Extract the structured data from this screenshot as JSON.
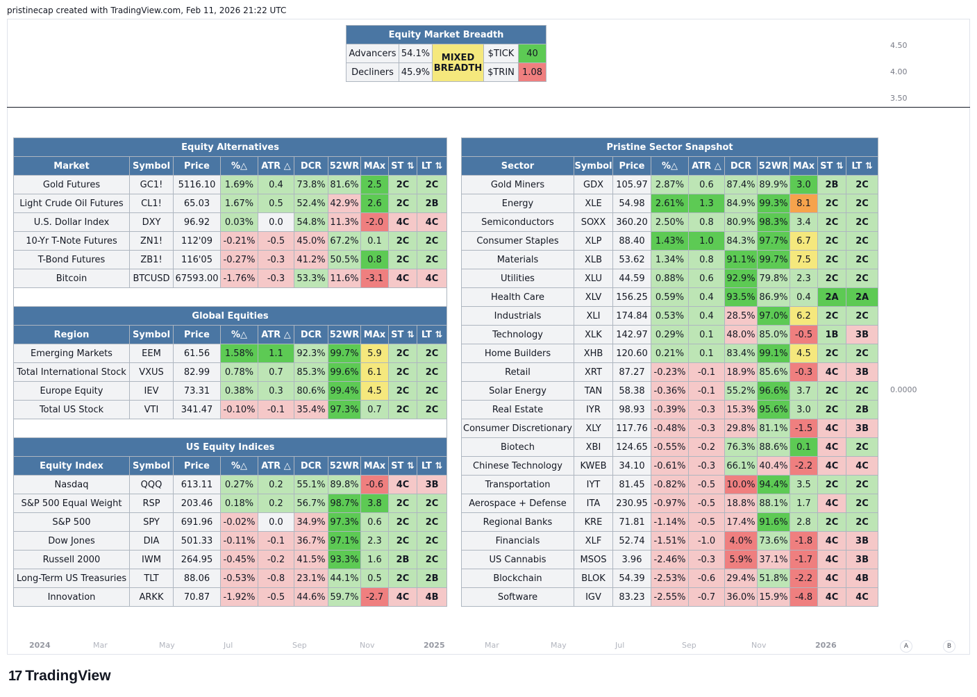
{
  "header": {
    "text": "pristinecap created with TradingView.com, Feb 11, 2026 21:22 UTC"
  },
  "price_axis_top": [
    "4.50",
    "4.00",
    "3.50"
  ],
  "price_axis_main": "0.0000",
  "time_axis": [
    "2024",
    "Mar",
    "May",
    "Jul",
    "Sep",
    "Nov",
    "2025",
    "Mar",
    "May",
    "Jul",
    "Sep",
    "Nov",
    "2026"
  ],
  "scale_buttons": [
    "A",
    "B"
  ],
  "logo": {
    "mark": "17",
    "text": "TradingView"
  },
  "breadth": {
    "title": "Equity Market Breadth",
    "advancers_label": "Advancers",
    "advancers_value": "54.1%",
    "decliners_label": "Decliners",
    "decliners_value": "45.9%",
    "status_line1": "MIXED",
    "status_line2": "BREADTH",
    "tick_label": "$TICK",
    "tick_value": "40",
    "trin_label": "$TRIN",
    "trin_value": "1.08"
  },
  "colors": {
    "header_blue": "#4a76a3",
    "light_red": "#f5c8c8",
    "light_green": "#bde5b5",
    "strong_green": "#5dca54",
    "strong_red": "#ef7f7f",
    "yellow": "#f5e87d",
    "orange": "#f6a34c"
  },
  "left_tables": {
    "columns_common": [
      "Symbol",
      "Price",
      "%△",
      "ATR △",
      "DCR",
      "52WR",
      "MAx",
      "ST ⇅",
      "LT ⇅"
    ],
    "sections": [
      {
        "title": "Equity Alternatives",
        "first_col": "Market",
        "rows": [
          [
            "Gold Futures",
            "GC1!",
            "5116.10",
            "1.69%",
            "0.4",
            "73.8%",
            "81.6%",
            "2.5",
            "2C",
            "2C"
          ],
          [
            "Light Crude Oil Futures",
            "CL1!",
            "65.03",
            "1.67%",
            "0.5",
            "52.4%",
            "42.9%",
            "2.6",
            "2C",
            "2B"
          ],
          [
            "U.S. Dollar Index",
            "DXY",
            "96.92",
            "0.03%",
            "0.0",
            "54.8%",
            "11.3%",
            "-2.0",
            "4C",
            "4C"
          ],
          [
            "10-Yr T-Note Futures",
            "ZN1!",
            "112'09",
            "-0.21%",
            "-0.5",
            "45.0%",
            "67.2%",
            "0.1",
            "2C",
            "2C"
          ],
          [
            "T-Bond Futures",
            "ZB1!",
            "116'05",
            "-0.27%",
            "-0.3",
            "41.2%",
            "50.5%",
            "0.8",
            "2C",
            "2C"
          ],
          [
            "Bitcoin",
            "BTCUSD",
            "67593.00",
            "-1.76%",
            "-0.3",
            "53.3%",
            "11.6%",
            "-3.1",
            "4C",
            "4C"
          ]
        ],
        "colors": [
          [
            "g",
            "g",
            "g",
            "g",
            "G",
            "g",
            "g"
          ],
          [
            "g",
            "g",
            "g",
            "r",
            "G",
            "g",
            "g"
          ],
          [
            "g",
            "n",
            "g",
            "r",
            "R",
            "r",
            "r"
          ],
          [
            "r",
            "r",
            "r",
            "g",
            "g",
            "g",
            "g"
          ],
          [
            "r",
            "r",
            "r",
            "g",
            "G",
            "g",
            "g"
          ],
          [
            "r",
            "r",
            "g",
            "r",
            "R",
            "r",
            "r"
          ]
        ]
      },
      {
        "title": "Global Equities",
        "first_col": "Region",
        "rows": [
          [
            "Emerging Markets",
            "EEM",
            "61.56",
            "1.58%",
            "1.1",
            "92.3%",
            "99.7%",
            "5.9",
            "2C",
            "2C"
          ],
          [
            "Total International Stock",
            "VXUS",
            "82.99",
            "0.78%",
            "0.7",
            "85.3%",
            "99.6%",
            "6.1",
            "2C",
            "2C"
          ],
          [
            "Europe Equity",
            "IEV",
            "73.31",
            "0.38%",
            "0.3",
            "80.6%",
            "99.4%",
            "4.5",
            "2C",
            "2C"
          ],
          [
            "Total US Stock",
            "VTI",
            "341.47",
            "-0.10%",
            "-0.1",
            "35.4%",
            "97.3%",
            "0.7",
            "2C",
            "2C"
          ]
        ],
        "colors": [
          [
            "G",
            "G",
            "g",
            "G",
            "y",
            "g",
            "g"
          ],
          [
            "g",
            "g",
            "g",
            "G",
            "y",
            "g",
            "g"
          ],
          [
            "g",
            "g",
            "g",
            "G",
            "y",
            "g",
            "g"
          ],
          [
            "r",
            "r",
            "r",
            "G",
            "g",
            "g",
            "g"
          ]
        ]
      },
      {
        "title": "US Equity Indices",
        "first_col": "Equity Index",
        "rows": [
          [
            "Nasdaq",
            "QQQ",
            "613.11",
            "0.27%",
            "0.2",
            "55.1%",
            "89.8%",
            "-0.6",
            "4C",
            "3B"
          ],
          [
            "S&P 500 Equal Weight",
            "RSP",
            "203.46",
            "0.18%",
            "0.2",
            "56.7%",
            "98.7%",
            "3.8",
            "2C",
            "2C"
          ],
          [
            "S&P 500",
            "SPY",
            "691.96",
            "-0.02%",
            "0.0",
            "34.9%",
            "97.3%",
            "0.6",
            "2C",
            "2C"
          ],
          [
            "Dow Jones",
            "DIA",
            "501.33",
            "-0.11%",
            "-0.1",
            "36.7%",
            "97.1%",
            "2.3",
            "2C",
            "2C"
          ],
          [
            "Russell 2000",
            "IWM",
            "264.95",
            "-0.45%",
            "-0.2",
            "41.5%",
            "93.3%",
            "1.6",
            "2B",
            "2C"
          ],
          [
            "Long-Term US Treasuries",
            "TLT",
            "88.06",
            "-0.53%",
            "-0.8",
            "23.1%",
            "44.1%",
            "0.5",
            "2C",
            "2B"
          ],
          [
            "Innovation",
            "ARKK",
            "70.87",
            "-1.92%",
            "-0.5",
            "44.6%",
            "59.7%",
            "-2.7",
            "4C",
            "4B"
          ]
        ],
        "colors": [
          [
            "g",
            "g",
            "g",
            "g",
            "R",
            "r",
            "r"
          ],
          [
            "g",
            "g",
            "g",
            "G",
            "G",
            "g",
            "g"
          ],
          [
            "r",
            "n",
            "r",
            "G",
            "g",
            "g",
            "g"
          ],
          [
            "r",
            "r",
            "r",
            "G",
            "g",
            "g",
            "g"
          ],
          [
            "r",
            "r",
            "r",
            "G",
            "g",
            "g",
            "g"
          ],
          [
            "r",
            "r",
            "r",
            "g",
            "g",
            "g",
            "g"
          ],
          [
            "r",
            "r",
            "r",
            "g",
            "R",
            "r",
            "r"
          ]
        ]
      }
    ]
  },
  "sector_table": {
    "title": "Pristine Sector Snapshot",
    "columns": [
      "Sector",
      "Symbol",
      "Price",
      "%△",
      "ATR △",
      "DCR",
      "52WR",
      "MAx",
      "ST ⇅",
      "LT ⇅"
    ],
    "rows": [
      [
        "Gold Miners",
        "GDX",
        "105.97",
        "2.87%",
        "0.6",
        "87.4%",
        "89.9%",
        "3.0",
        "2B",
        "2C"
      ],
      [
        "Energy",
        "XLE",
        "54.98",
        "2.61%",
        "1.3",
        "84.9%",
        "99.3%",
        "8.1",
        "2C",
        "2C"
      ],
      [
        "Semiconductors",
        "SOXX",
        "360.20",
        "2.50%",
        "0.8",
        "80.9%",
        "98.3%",
        "3.4",
        "2C",
        "2C"
      ],
      [
        "Consumer Staples",
        "XLP",
        "88.40",
        "1.43%",
        "1.0",
        "84.3%",
        "97.7%",
        "6.7",
        "2C",
        "2C"
      ],
      [
        "Materials",
        "XLB",
        "53.62",
        "1.34%",
        "0.8",
        "91.1%",
        "99.7%",
        "7.5",
        "2C",
        "2C"
      ],
      [
        "Utilities",
        "XLU",
        "44.59",
        "0.88%",
        "0.6",
        "92.9%",
        "79.8%",
        "2.3",
        "2C",
        "2C"
      ],
      [
        "Health Care",
        "XLV",
        "156.25",
        "0.59%",
        "0.4",
        "93.5%",
        "86.9%",
        "0.4",
        "2A",
        "2A"
      ],
      [
        "Industrials",
        "XLI",
        "174.84",
        "0.53%",
        "0.4",
        "28.5%",
        "97.0%",
        "6.2",
        "2C",
        "2C"
      ],
      [
        "Technology",
        "XLK",
        "142.97",
        "0.29%",
        "0.1",
        "48.0%",
        "85.0%",
        "-0.5",
        "1B",
        "3B"
      ],
      [
        "Home Builders",
        "XHB",
        "120.60",
        "0.21%",
        "0.1",
        "83.4%",
        "99.1%",
        "4.5",
        "2C",
        "2C"
      ],
      [
        "Retail",
        "XRT",
        "87.27",
        "-0.23%",
        "-0.1",
        "18.9%",
        "85.6%",
        "-0.3",
        "4C",
        "3B"
      ],
      [
        "Solar Energy",
        "TAN",
        "58.38",
        "-0.36%",
        "-0.1",
        "55.2%",
        "96.6%",
        "3.7",
        "2C",
        "2C"
      ],
      [
        "Real Estate",
        "IYR",
        "98.93",
        "-0.39%",
        "-0.3",
        "15.3%",
        "95.6%",
        "3.0",
        "2C",
        "2B"
      ],
      [
        "Consumer Discretionary",
        "XLY",
        "117.76",
        "-0.48%",
        "-0.3",
        "29.8%",
        "81.1%",
        "-1.5",
        "4C",
        "3B"
      ],
      [
        "Biotech",
        "XBI",
        "124.65",
        "-0.55%",
        "-0.2",
        "76.3%",
        "88.6%",
        "0.1",
        "4C",
        "2C"
      ],
      [
        "Chinese Technology",
        "KWEB",
        "34.10",
        "-0.61%",
        "-0.3",
        "66.1%",
        "40.4%",
        "-2.2",
        "4C",
        "4C"
      ],
      [
        "Transportation",
        "IYT",
        "81.45",
        "-0.82%",
        "-0.5",
        "10.0%",
        "94.4%",
        "3.5",
        "2C",
        "2C"
      ],
      [
        "Aerospace + Defense",
        "ITA",
        "230.95",
        "-0.97%",
        "-0.5",
        "18.8%",
        "88.1%",
        "1.7",
        "4C",
        "2C"
      ],
      [
        "Regional Banks",
        "KRE",
        "71.81",
        "-1.14%",
        "-0.5",
        "17.4%",
        "91.6%",
        "2.8",
        "2C",
        "2C"
      ],
      [
        "Financials",
        "XLF",
        "52.74",
        "-1.51%",
        "-1.0",
        "4.0%",
        "73.6%",
        "-1.8",
        "4C",
        "3B"
      ],
      [
        "US Cannabis",
        "MSOS",
        "3.96",
        "-2.46%",
        "-0.3",
        "5.9%",
        "37.1%",
        "-1.7",
        "4C",
        "3B"
      ],
      [
        "Blockchain",
        "BLOK",
        "54.39",
        "-2.53%",
        "-0.6",
        "29.4%",
        "51.8%",
        "-2.2",
        "4C",
        "4B"
      ],
      [
        "Software",
        "IGV",
        "83.23",
        "-2.55%",
        "-0.7",
        "36.0%",
        "15.9%",
        "-4.8",
        "4C",
        "4C"
      ]
    ],
    "colors": [
      [
        "g",
        "g",
        "g",
        "g",
        "G",
        "g",
        "g"
      ],
      [
        "G",
        "G",
        "g",
        "G",
        "o",
        "g",
        "g"
      ],
      [
        "g",
        "g",
        "g",
        "G",
        "g",
        "g",
        "g"
      ],
      [
        "G",
        "G",
        "g",
        "G",
        "y",
        "g",
        "g"
      ],
      [
        "g",
        "g",
        "G",
        "G",
        "y",
        "g",
        "g"
      ],
      [
        "g",
        "g",
        "G",
        "g",
        "g",
        "g",
        "g"
      ],
      [
        "g",
        "g",
        "G",
        "g",
        "g",
        "G",
        "G"
      ],
      [
        "g",
        "g",
        "r",
        "G",
        "y",
        "g",
        "g"
      ],
      [
        "g",
        "g",
        "r",
        "g",
        "R",
        "g",
        "r"
      ],
      [
        "g",
        "g",
        "g",
        "G",
        "y",
        "g",
        "g"
      ],
      [
        "r",
        "r",
        "r",
        "g",
        "R",
        "r",
        "r"
      ],
      [
        "r",
        "r",
        "g",
        "G",
        "g",
        "g",
        "g"
      ],
      [
        "r",
        "r",
        "r",
        "G",
        "g",
        "g",
        "g"
      ],
      [
        "r",
        "r",
        "r",
        "g",
        "R",
        "r",
        "r"
      ],
      [
        "r",
        "r",
        "g",
        "g",
        "G",
        "r",
        "g"
      ],
      [
        "r",
        "r",
        "g",
        "r",
        "R",
        "r",
        "r"
      ],
      [
        "r",
        "r",
        "R",
        "G",
        "g",
        "g",
        "g"
      ],
      [
        "r",
        "r",
        "r",
        "g",
        "g",
        "r",
        "g"
      ],
      [
        "r",
        "r",
        "r",
        "G",
        "g",
        "g",
        "g"
      ],
      [
        "r",
        "r",
        "R",
        "g",
        "R",
        "r",
        "r"
      ],
      [
        "r",
        "r",
        "R",
        "r",
        "R",
        "r",
        "r"
      ],
      [
        "r",
        "r",
        "r",
        "g",
        "R",
        "r",
        "r"
      ],
      [
        "r",
        "r",
        "r",
        "r",
        "R",
        "r",
        "r"
      ]
    ]
  }
}
